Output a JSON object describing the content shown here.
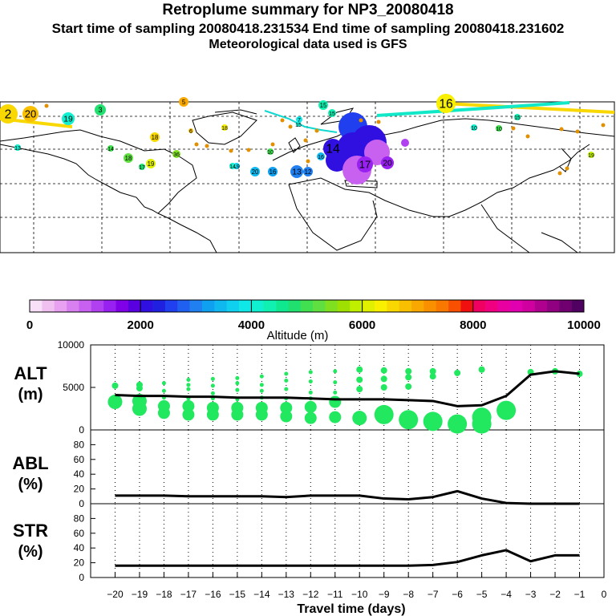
{
  "header": {
    "title": "Retroplume summary for NP3_20080418",
    "sampling": "Start time of sampling 20080418.231534     End time of sampling 20080418.231602",
    "met": "Meteorological data used is GFS"
  },
  "colorbar": {
    "label": "Altitude (m)",
    "ticks": [
      "0",
      "2000",
      "4000",
      "6000",
      "8000",
      "10000"
    ],
    "range": [
      0,
      10000
    ],
    "colors": [
      "#f8e0f8",
      "#f0c0f0",
      "#e8a0f0",
      "#d880f0",
      "#c860f0",
      "#b040f0",
      "#9820f0",
      "#8000e8",
      "#5800e0",
      "#3010e0",
      "#2020e0",
      "#2040f0",
      "#2060f0",
      "#2080f0",
      "#10a0f0",
      "#10b8f0",
      "#10d0f0",
      "#10e8e8",
      "#10f0d0",
      "#10f0b0",
      "#10e890",
      "#20e070",
      "#40e050",
      "#60e040",
      "#80e020",
      "#a0e000",
      "#c0f000",
      "#e0f000",
      "#f8f000",
      "#f8d800",
      "#f8c000",
      "#f8a800",
      "#f89000",
      "#f87800",
      "#f85000",
      "#f01010",
      "#f00060",
      "#f00080",
      "#e800a0",
      "#e000b0",
      "#d000a0",
      "#b00090",
      "#900080",
      "#700070",
      "#500060"
    ]
  },
  "map": {
    "labels": [
      "2",
      "20",
      "19",
      "3",
      "5",
      "16",
      "15",
      "15",
      "7",
      "18",
      "6",
      "10",
      "13",
      "14",
      "18",
      "18",
      "36",
      "19",
      "17",
      "10",
      "19",
      "15",
      "20",
      "16",
      "13",
      "12",
      "14",
      "16",
      "17",
      "20",
      "10",
      "15",
      "19",
      "14"
    ]
  },
  "chart_data": [
    {
      "type": "line",
      "title": "ALT",
      "units": "(m)",
      "x": [
        -20,
        -19,
        -18,
        -17,
        -16,
        -15,
        -14,
        -13,
        -12,
        -11,
        -10,
        -9,
        -8,
        -7,
        -6,
        -5,
        -4,
        -3,
        -2,
        -1
      ],
      "values": [
        4100,
        4000,
        4000,
        3900,
        3900,
        3800,
        3800,
        3800,
        3700,
        3600,
        3600,
        3600,
        3500,
        3400,
        2800,
        2900,
        4000,
        6500,
        6900,
        6600
      ],
      "ylim": [
        0,
        10000
      ],
      "yticks": [
        "0",
        "5000",
        "10000"
      ],
      "point_series": [
        {
          "day": -20,
          "alts": [
            3300,
            5200
          ]
        },
        {
          "day": -19,
          "alts": [
            2500,
            3400,
            4900,
            5300
          ]
        },
        {
          "day": -18,
          "alts": [
            2000,
            2800,
            3800,
            4600,
            5500
          ]
        },
        {
          "day": -17,
          "alts": [
            1800,
            2800,
            3700,
            4800,
            5300,
            5900
          ]
        },
        {
          "day": -16,
          "alts": [
            1800,
            2600,
            3700,
            4300,
            5200,
            6000
          ]
        },
        {
          "day": -15,
          "alts": [
            1800,
            2600,
            3600,
            4700,
            5500,
            6100
          ]
        },
        {
          "day": -14,
          "alts": [
            1800,
            2600,
            3800,
            4600,
            5300,
            6300
          ]
        },
        {
          "day": -13,
          "alts": [
            1600,
            2600,
            3700,
            4800,
            5800,
            6600
          ]
        },
        {
          "day": -12,
          "alts": [
            1400,
            2700,
            3700,
            4400,
            5700,
            6800
          ]
        },
        {
          "day": -11,
          "alts": [
            1500,
            3300,
            4400,
            5600,
            6900
          ]
        },
        {
          "day": -10,
          "alts": [
            1400,
            4800,
            5900,
            7100
          ]
        },
        {
          "day": -9,
          "alts": [
            1800,
            5000,
            6000,
            7000
          ]
        },
        {
          "day": -8,
          "alts": [
            1200,
            5100,
            6200,
            6900
          ]
        },
        {
          "day": -7,
          "alts": [
            1000,
            6300,
            6900
          ]
        },
        {
          "day": -6,
          "alts": [
            700,
            6700
          ]
        },
        {
          "day": -5,
          "alts": [
            700,
            1500,
            7100
          ]
        },
        {
          "day": -4,
          "alts": [
            2300
          ]
        },
        {
          "day": -3,
          "alts": [
            6800
          ]
        },
        {
          "day": -2,
          "alts": [
            6900
          ]
        },
        {
          "day": -1,
          "alts": [
            6600
          ]
        }
      ]
    },
    {
      "type": "line",
      "title": "ABL",
      "units": "(%)",
      "x": [
        -20,
        -19,
        -18,
        -17,
        -16,
        -15,
        -14,
        -13,
        -12,
        -11,
        -10,
        -9,
        -8,
        -7,
        -6,
        -5,
        -4,
        -3,
        -2,
        -1
      ],
      "values": [
        11,
        11,
        11,
        10,
        10,
        10,
        10,
        9,
        11,
        11,
        11,
        7,
        6,
        9,
        17,
        7,
        1,
        0,
        0,
        0
      ],
      "ylim": [
        0,
        100
      ],
      "yticks": [
        "0",
        "20",
        "40",
        "60",
        "80"
      ]
    },
    {
      "type": "line",
      "title": "STR",
      "units": "(%)",
      "x": [
        -20,
        -19,
        -18,
        -17,
        -16,
        -15,
        -14,
        -13,
        -12,
        -11,
        -10,
        -9,
        -8,
        -7,
        -6,
        -5,
        -4,
        -3,
        -2,
        -1
      ],
      "values": [
        16,
        16,
        16,
        16,
        16,
        16,
        16,
        16,
        16,
        16,
        16,
        16,
        16,
        17,
        21,
        30,
        37,
        22,
        30,
        30
      ],
      "ylim": [
        0,
        100
      ],
      "yticks": [
        "0",
        "20",
        "40",
        "60",
        "80"
      ]
    }
  ],
  "xaxis": {
    "label": "Travel time (days)",
    "ticks": [
      "−20",
      "−19",
      "−18",
      "−17",
      "−16",
      "−15",
      "−14",
      "−13",
      "−12",
      "−11",
      "−10",
      "−9",
      "−8",
      "−7",
      "−6",
      "−5",
      "−4",
      "−3",
      "−2",
      "−1",
      "0"
    ]
  }
}
